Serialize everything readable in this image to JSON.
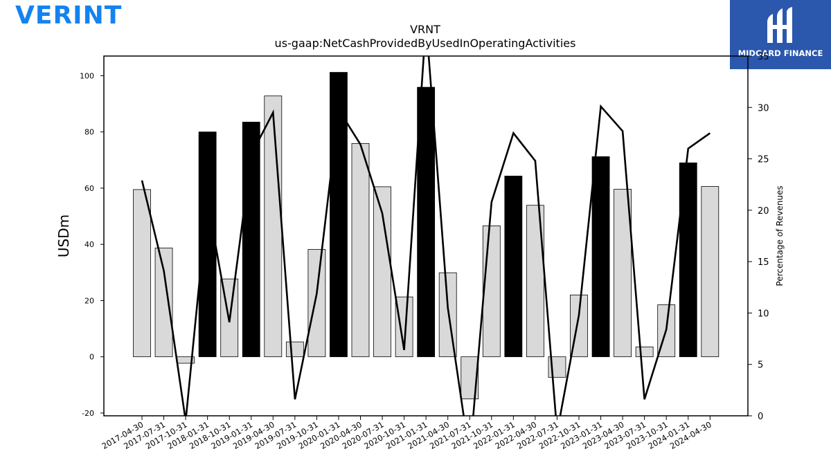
{
  "logos": {
    "brand": "VERINT",
    "partner": "MIDGARD FINANCE"
  },
  "chart_data": {
    "type": "bar",
    "title": "VRNT",
    "subtitle": "us-gaap:NetCashProvidedByUsedInOperatingActivities",
    "ylabel": "USDm",
    "y2label": "Percentage of Revenues",
    "categories": [
      "2017-04-30",
      "2017-07-31",
      "2017-10-31",
      "2018-01-31",
      "2018-10-31",
      "2019-01-31",
      "2019-04-30",
      "2019-07-31",
      "2019-10-31",
      "2020-01-31",
      "2020-04-30",
      "2020-07-31",
      "2020-10-31",
      "2021-01-31",
      "2021-04-30",
      "2021-07-31",
      "2021-10-31",
      "2022-01-31",
      "2022-04-30",
      "2022-07-31",
      "2022-10-31",
      "2023-01-31",
      "2023-04-30",
      "2023-07-31",
      "2023-10-31",
      "2024-01-31",
      "2024-04-30"
    ],
    "series": [
      {
        "kind": "bar",
        "values": [
          59.5,
          38.7,
          -2.3,
          80.0,
          27.7,
          83.5,
          92.8,
          5.3,
          38.2,
          101.2,
          75.9,
          60.5,
          21.3,
          95.9,
          29.9,
          -15.0,
          46.6,
          64.3,
          53.9,
          -7.3,
          22.0,
          71.2,
          59.6,
          3.5,
          18.5,
          69.0,
          60.6
        ],
        "highlight": [
          false,
          false,
          false,
          true,
          false,
          true,
          false,
          false,
          false,
          true,
          false,
          false,
          false,
          true,
          false,
          false,
          false,
          true,
          false,
          false,
          false,
          true,
          false,
          false,
          false,
          true,
          false
        ],
        "axis": "left"
      },
      {
        "kind": "line",
        "values": [
          22.9,
          14.1,
          -0.5,
          21.0,
          9.1,
          25.4,
          29.5,
          1.6,
          11.9,
          29.8,
          26.4,
          19.7,
          6.4,
          38.4,
          10.5,
          -4.0,
          20.8,
          27.5,
          24.8,
          -1.6,
          9.8,
          30.1,
          27.7,
          1.6,
          8.4,
          26.0,
          27.5
        ],
        "axis": "right"
      }
    ],
    "ylim": [
      -21,
      107
    ],
    "y2lim": [
      0,
      35
    ],
    "yticks": [
      -20,
      0,
      20,
      40,
      60,
      80,
      100
    ],
    "y2ticks": [
      0,
      5,
      10,
      15,
      20,
      25,
      30,
      35
    ],
    "colors": {
      "bar": "#d9d9d9",
      "highlight": "#000000",
      "line": "#000000",
      "partner_bg": "#2b57ad",
      "brand": "#1483f0"
    },
    "grid": false
  }
}
